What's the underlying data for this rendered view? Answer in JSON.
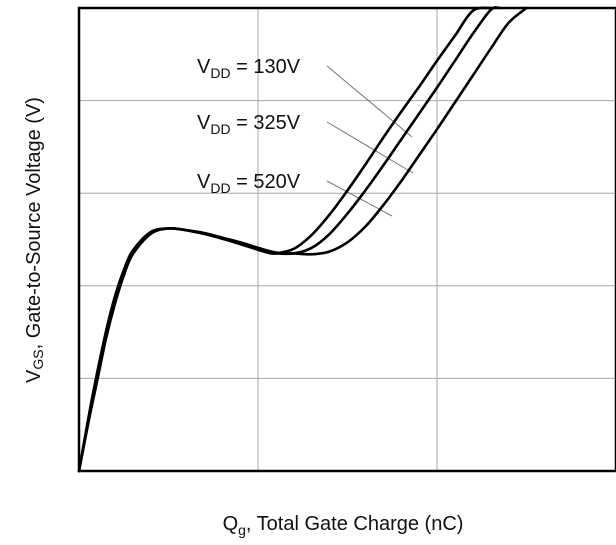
{
  "chart_data": {
    "type": "line",
    "xlabel": {
      "main": "Q",
      "sub": "g",
      "rest": ", Total Gate Charge (nC)"
    },
    "ylabel": {
      "main": "V",
      "sub": "GS",
      "rest": ", Gate-to-Source Voltage (V)"
    },
    "xlim": [
      0,
      3
    ],
    "ylim": [
      0,
      5
    ],
    "grid": true,
    "tick_labels": "none",
    "series": [
      {
        "name": {
          "main": "V",
          "sub": "DD",
          "rest": " = 130V"
        },
        "x": [
          0,
          0.05,
          0.1,
          0.15,
          0.2,
          0.25,
          0.3,
          0.4,
          0.5,
          0.6,
          0.7,
          0.8,
          0.9,
          1.0,
          1.05,
          1.1,
          1.2,
          1.3,
          1.4,
          1.5,
          1.6,
          1.7,
          1.8,
          1.9,
          2.0,
          2.1,
          2.2,
          2.3
        ],
        "y": [
          0,
          0.55,
          1.05,
          1.5,
          1.88,
          2.17,
          2.38,
          2.58,
          2.62,
          2.6,
          2.56,
          2.51,
          2.45,
          2.39,
          2.36,
          2.35,
          2.4,
          2.55,
          2.77,
          3.03,
          3.31,
          3.6,
          3.88,
          4.15,
          4.43,
          4.7,
          4.97,
          5.0
        ]
      },
      {
        "name": {
          "main": "V",
          "sub": "DD",
          "rest": " = 325V"
        },
        "x": [
          0,
          0.05,
          0.1,
          0.15,
          0.2,
          0.25,
          0.3,
          0.4,
          0.5,
          0.6,
          0.7,
          0.8,
          0.9,
          1.0,
          1.05,
          1.1,
          1.2,
          1.3,
          1.4,
          1.5,
          1.6,
          1.7,
          1.8,
          1.9,
          2.0,
          2.1,
          2.2,
          2.3,
          2.35
        ],
        "y": [
          0,
          0.52,
          1.0,
          1.46,
          1.84,
          2.14,
          2.36,
          2.57,
          2.62,
          2.6,
          2.56,
          2.51,
          2.46,
          2.4,
          2.37,
          2.35,
          2.35,
          2.41,
          2.56,
          2.78,
          3.03,
          3.3,
          3.58,
          3.86,
          4.14,
          4.43,
          4.72,
          4.98,
          5.0
        ]
      },
      {
        "name": {
          "main": "V",
          "sub": "DD",
          "rest": " = 520V"
        },
        "x": [
          0,
          0.05,
          0.1,
          0.15,
          0.2,
          0.25,
          0.3,
          0.4,
          0.5,
          0.6,
          0.7,
          0.8,
          0.9,
          1.0,
          1.1,
          1.2,
          1.3,
          1.4,
          1.5,
          1.6,
          1.7,
          1.8,
          1.9,
          2.0,
          2.1,
          2.2,
          2.3,
          2.4,
          2.5
        ],
        "y": [
          0,
          0.5,
          0.96,
          1.42,
          1.8,
          2.11,
          2.34,
          2.56,
          2.62,
          2.6,
          2.57,
          2.52,
          2.47,
          2.41,
          2.36,
          2.35,
          2.34,
          2.37,
          2.47,
          2.64,
          2.87,
          3.13,
          3.41,
          3.69,
          3.98,
          4.27,
          4.56,
          4.84,
          5.0
        ]
      }
    ]
  }
}
